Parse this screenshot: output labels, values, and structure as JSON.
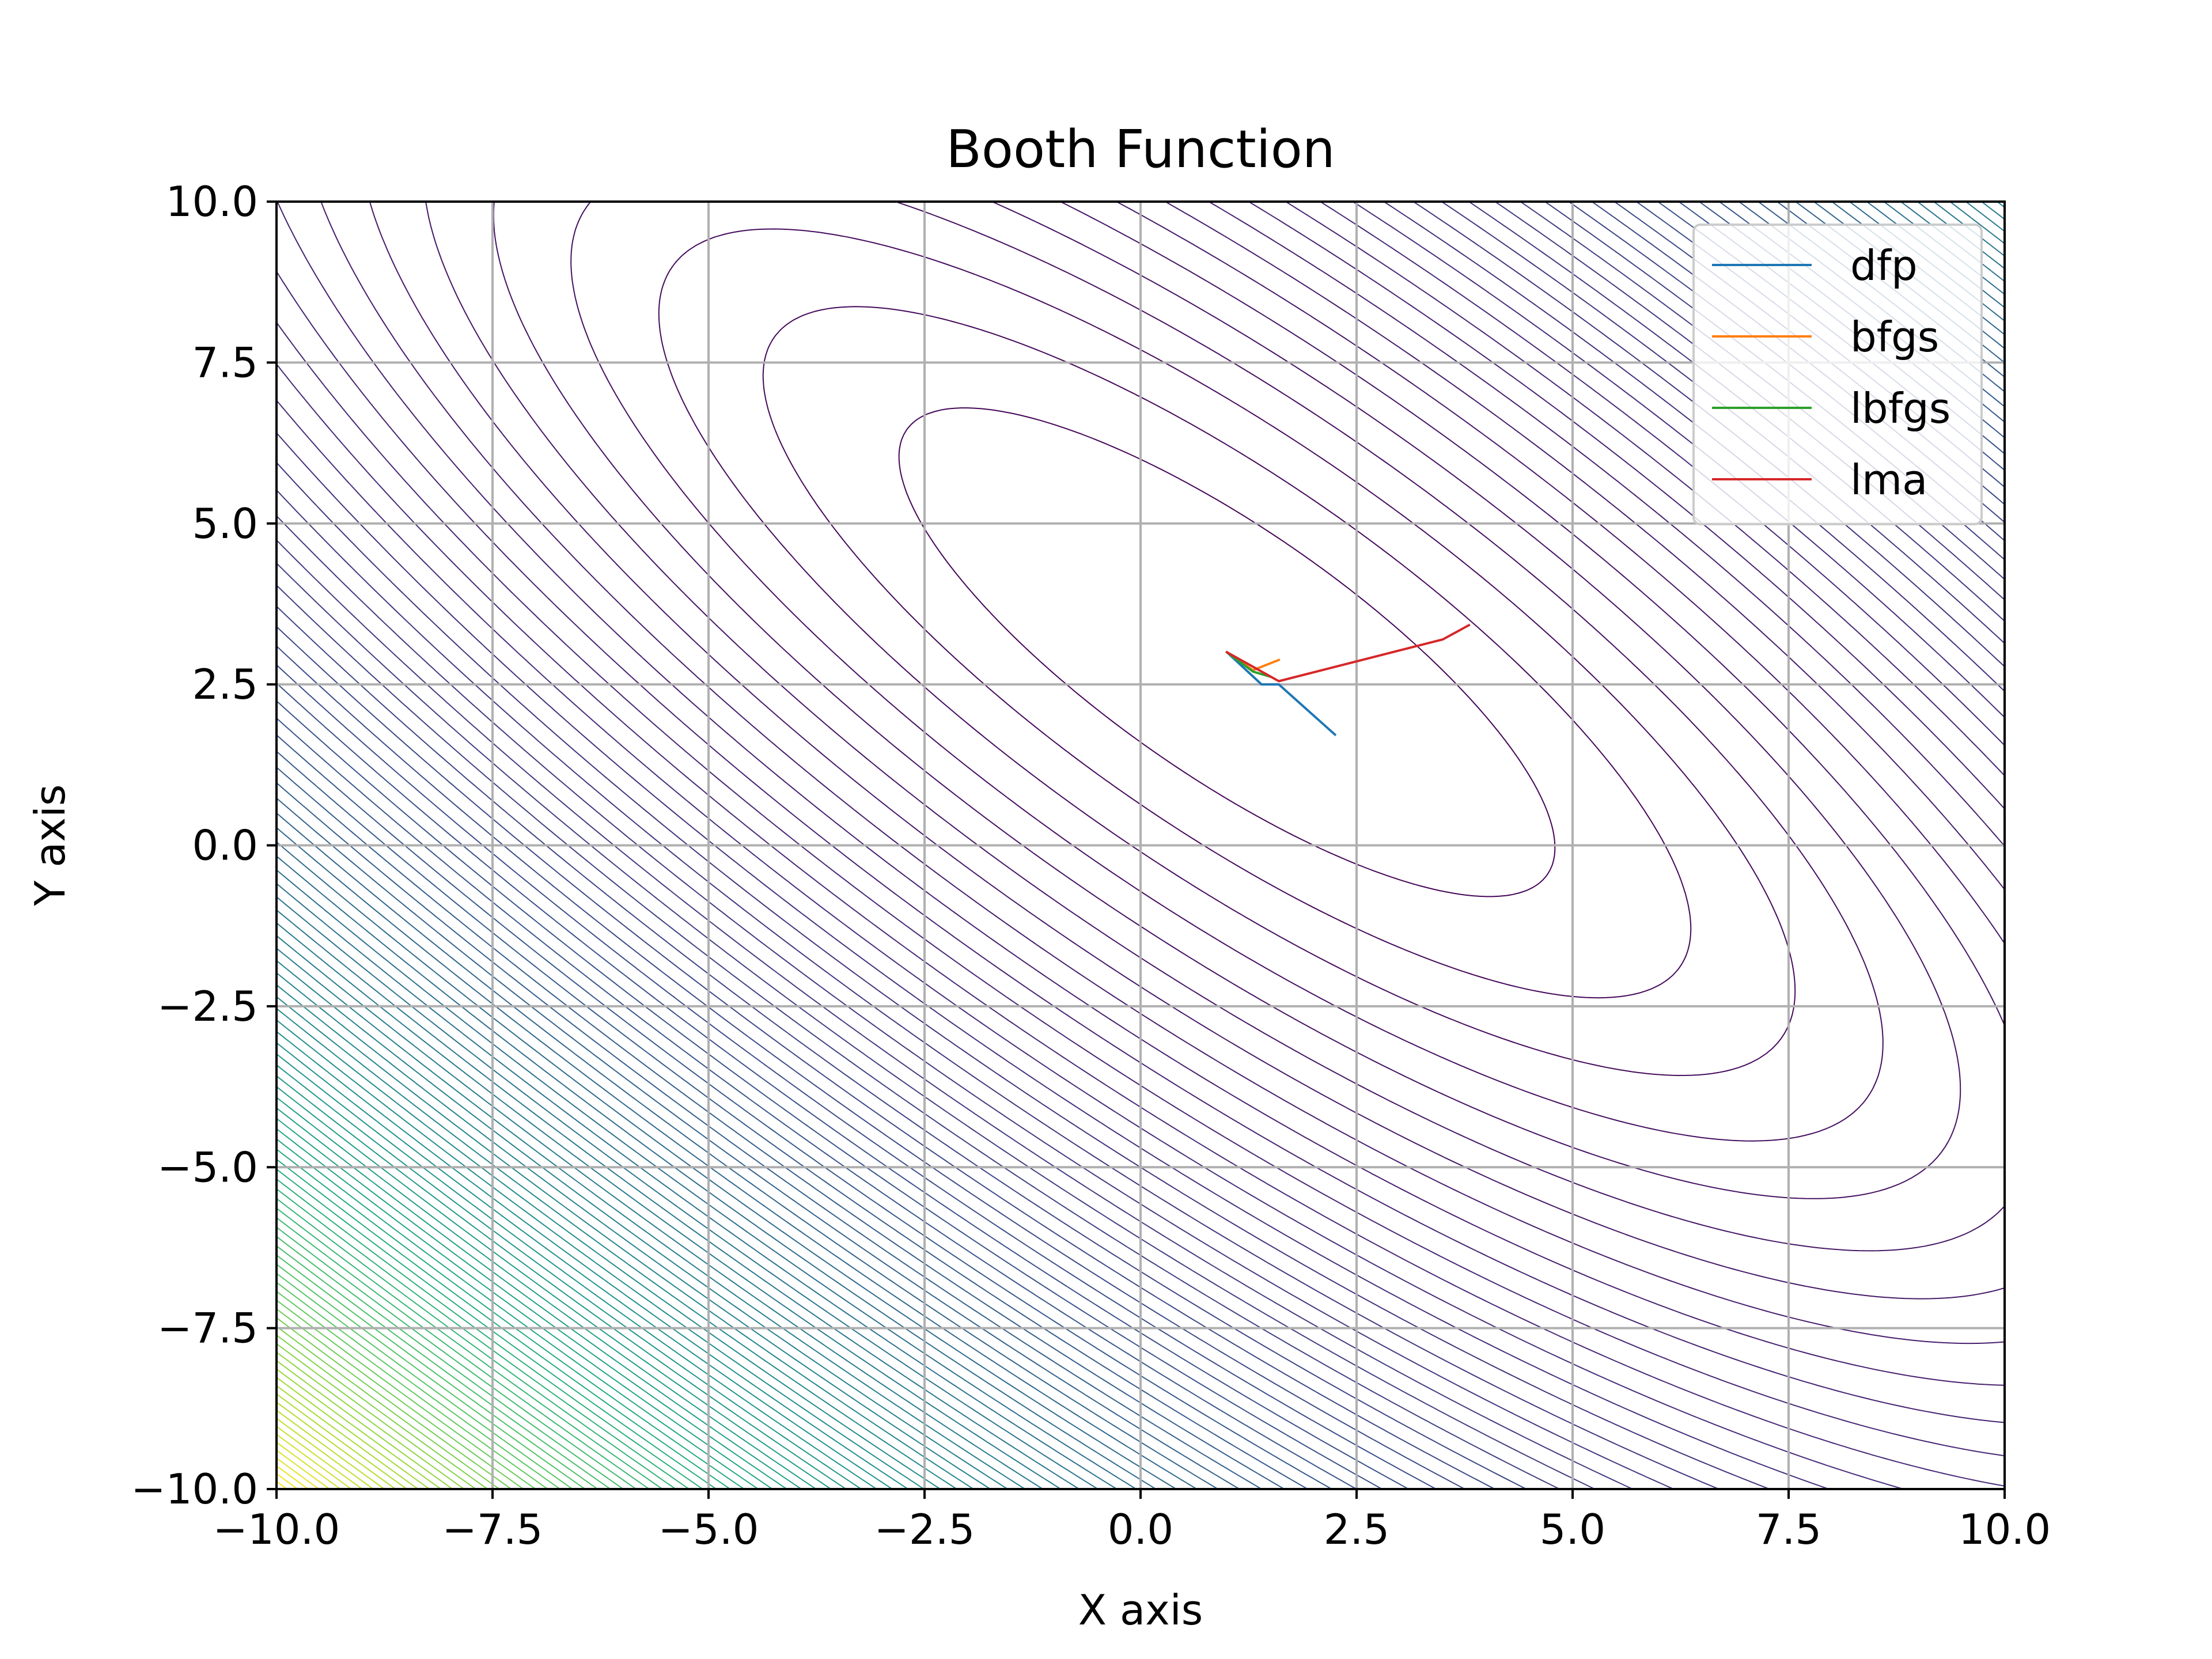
{
  "chart_data": {
    "type": "line",
    "title": "Booth Function",
    "xlabel": "X axis",
    "ylabel": "Y axis",
    "xlim": [
      -10,
      10
    ],
    "ylim": [
      -10,
      10
    ],
    "xticks": [
      -10,
      -7.5,
      -5,
      -2.5,
      0,
      2.5,
      5,
      7.5,
      10
    ],
    "yticks": [
      -10,
      -7.5,
      -5,
      -2.5,
      0,
      2.5,
      5,
      7.5,
      10
    ],
    "xtick_labels": [
      "−10.0",
      "−7.5",
      "−5.0",
      "−2.5",
      "0.0",
      "2.5",
      "5.0",
      "7.5",
      "10.0"
    ],
    "ytick_labels": [
      "−10.0",
      "−7.5",
      "−5.0",
      "−2.5",
      "0.0",
      "2.5",
      "5.0",
      "7.5",
      "10.0"
    ],
    "grid": true,
    "legend_position": "top-right",
    "background": {
      "type": "contour",
      "function": "(x + 2y − 7)^2 + (2x + y − 5)^2",
      "colormap": "viridis",
      "levels": 100
    },
    "series": [
      {
        "name": "dfp",
        "color": "#1f77b4",
        "x": [
          2.25,
          1.6,
          1.4,
          1.0
        ],
        "y": [
          1.72,
          2.5,
          2.5,
          3.0
        ]
      },
      {
        "name": "bfgs",
        "color": "#ff7f0e",
        "x": [
          1.6,
          1.3,
          1.0
        ],
        "y": [
          2.88,
          2.72,
          3.0
        ]
      },
      {
        "name": "lbfgs",
        "color": "#2ca02c",
        "x": [
          1.0,
          1.3,
          1.5
        ],
        "y": [
          3.0,
          2.7,
          2.62
        ]
      },
      {
        "name": "lma",
        "color": "#d62728",
        "x": [
          3.8,
          3.5,
          1.6,
          1.0
        ],
        "y": [
          3.42,
          3.2,
          2.55,
          3.0
        ]
      }
    ]
  }
}
